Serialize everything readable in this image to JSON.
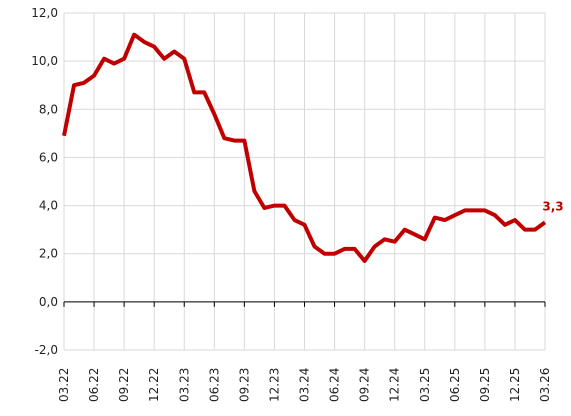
{
  "chart_data": {
    "type": "line",
    "categories": [
      "03.22",
      null,
      null,
      "06.22",
      null,
      null,
      "09.22",
      null,
      null,
      "12.22",
      null,
      null,
      "03.23",
      null,
      null,
      "06.23",
      null,
      null,
      "09.23",
      null,
      null,
      "12.23",
      null,
      null,
      "03.24",
      null,
      null,
      "06.24",
      null,
      null,
      "09.24",
      null,
      null,
      "12.24",
      null,
      null,
      "03.25",
      null,
      null,
      "06.25",
      null,
      null,
      "09.25",
      null,
      null,
      "12.25",
      null,
      null,
      "03.26"
    ],
    "series": [
      {
        "color": "#c00000",
        "values": [
          6.9,
          9.0,
          9.1,
          9.4,
          10.1,
          9.9,
          10.1,
          11.1,
          10.8,
          10.6,
          10.1,
          10.4,
          10.1,
          8.7,
          8.7,
          7.8,
          6.8,
          6.7,
          6.7,
          4.6,
          3.9,
          4.0,
          4.0,
          3.4,
          3.2,
          2.3,
          2.0,
          2.0,
          2.2,
          2.2,
          1.7,
          2.3,
          2.6,
          2.5,
          3.0,
          2.8,
          2.6,
          3.5,
          3.4,
          3.6,
          3.8,
          3.8,
          3.8,
          3.6,
          3.2,
          3.4,
          3.0,
          3.0,
          3.3
        ],
        "value_labels": [
          null,
          null,
          null,
          null,
          null,
          null,
          null,
          null,
          null,
          null,
          null,
          null,
          null,
          null,
          null,
          null,
          null,
          null,
          null,
          null,
          null,
          null,
          null,
          null,
          null,
          null,
          null,
          null,
          null,
          null,
          null,
          null,
          null,
          null,
          null,
          null,
          null,
          null,
          null,
          null,
          null,
          null,
          null,
          null,
          null,
          null,
          null,
          null,
          "3,3"
        ]
      }
    ],
    "ylim": [
      -2,
      12
    ],
    "yticks": [
      {
        "value": -2,
        "label": "-2,0"
      },
      {
        "value": 0,
        "label": "0,0"
      },
      {
        "value": 2,
        "label": "2,0"
      },
      {
        "value": 4,
        "label": "4,0"
      },
      {
        "value": 6,
        "label": "6,0"
      },
      {
        "value": 8,
        "label": "8,0"
      },
      {
        "value": 10,
        "label": "10,0"
      },
      {
        "value": 12,
        "label": "12,0"
      }
    ],
    "grid": true
  }
}
